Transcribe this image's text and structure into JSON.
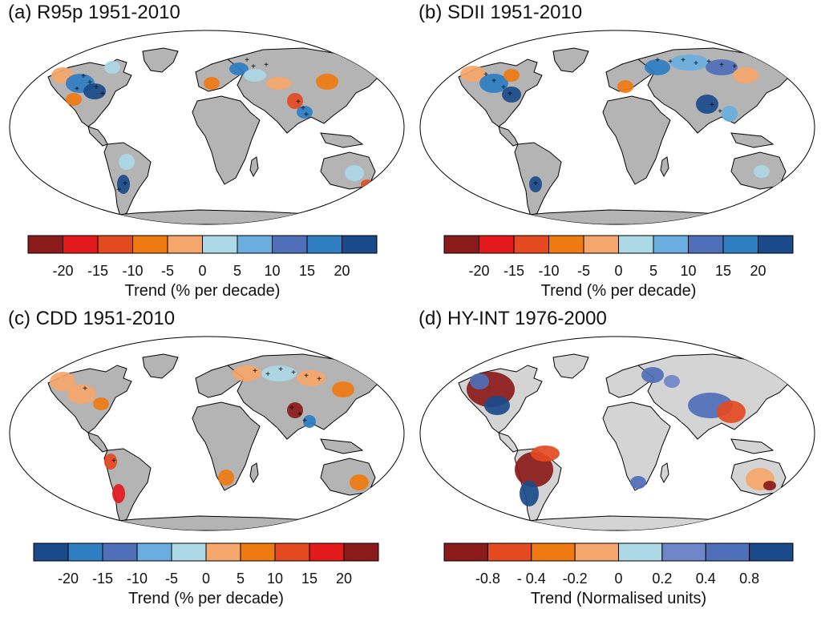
{
  "colors": {
    "land": "#b4b4b4",
    "land_light": "#d4d4d4",
    "ocean": "#ffffff",
    "outline": "#000000",
    "trend_scale_wet": [
      "#8b1a1a",
      "#e31a1c",
      "#e34a20",
      "#f07a12",
      "#f5a66a",
      "#add8e6",
      "#6aaee0",
      "#4f6fb8",
      "#2f7ec2",
      "#1a4a8a"
    ],
    "trend_scale_dry": [
      "#1a4a8a",
      "#2f7ec2",
      "#4f6fb8",
      "#6aaee0",
      "#add8e6",
      "#f5a66a",
      "#f07a12",
      "#e34a20",
      "#e31a1c",
      "#8b1a1a"
    ],
    "normalised_scale": [
      "#8b1a1a",
      "#e34a20",
      "#f07a12",
      "#f5a66a",
      "#add8e6",
      "#6f86c8",
      "#4f6fb8",
      "#1a4a8a"
    ]
  },
  "panels": [
    {
      "title": "(a)  R95p 1951-2010",
      "colorbar": {
        "palette": "trend_scale_wet",
        "ticks": [
          "-20",
          "-15",
          "-10",
          "-5",
          "0",
          "5",
          "10",
          "15",
          "20"
        ],
        "label": "Trend (% per decade)"
      },
      "stippled": true,
      "land_shade": "land"
    },
    {
      "title": "(b)  SDII 1951-2010",
      "colorbar": {
        "palette": "trend_scale_wet",
        "ticks": [
          "-20",
          "-15",
          "-10",
          "-5",
          "0",
          "5",
          "10",
          "15",
          "20"
        ],
        "label": "Trend (% per decade)"
      },
      "stippled": true,
      "land_shade": "land"
    },
    {
      "title": "(c)  CDD 1951-2010",
      "colorbar": {
        "palette": "trend_scale_dry",
        "ticks": [
          "-20",
          "-15",
          "-10",
          "-5",
          "0",
          "5",
          "10",
          "15",
          "20"
        ],
        "label": "Trend (% per decade)"
      },
      "stippled": true,
      "land_shade": "land"
    },
    {
      "title": "(d)  HY-INT 1976-2000",
      "colorbar": {
        "palette": "normalised_scale",
        "ticks": [
          "-0.8",
          "- 0.4",
          "-0.2",
          "0",
          "0.2",
          "0.4",
          "0.8"
        ],
        "label": "Trend (Normalised units)"
      },
      "stippled": false,
      "land_shade": "land_light"
    }
  ]
}
